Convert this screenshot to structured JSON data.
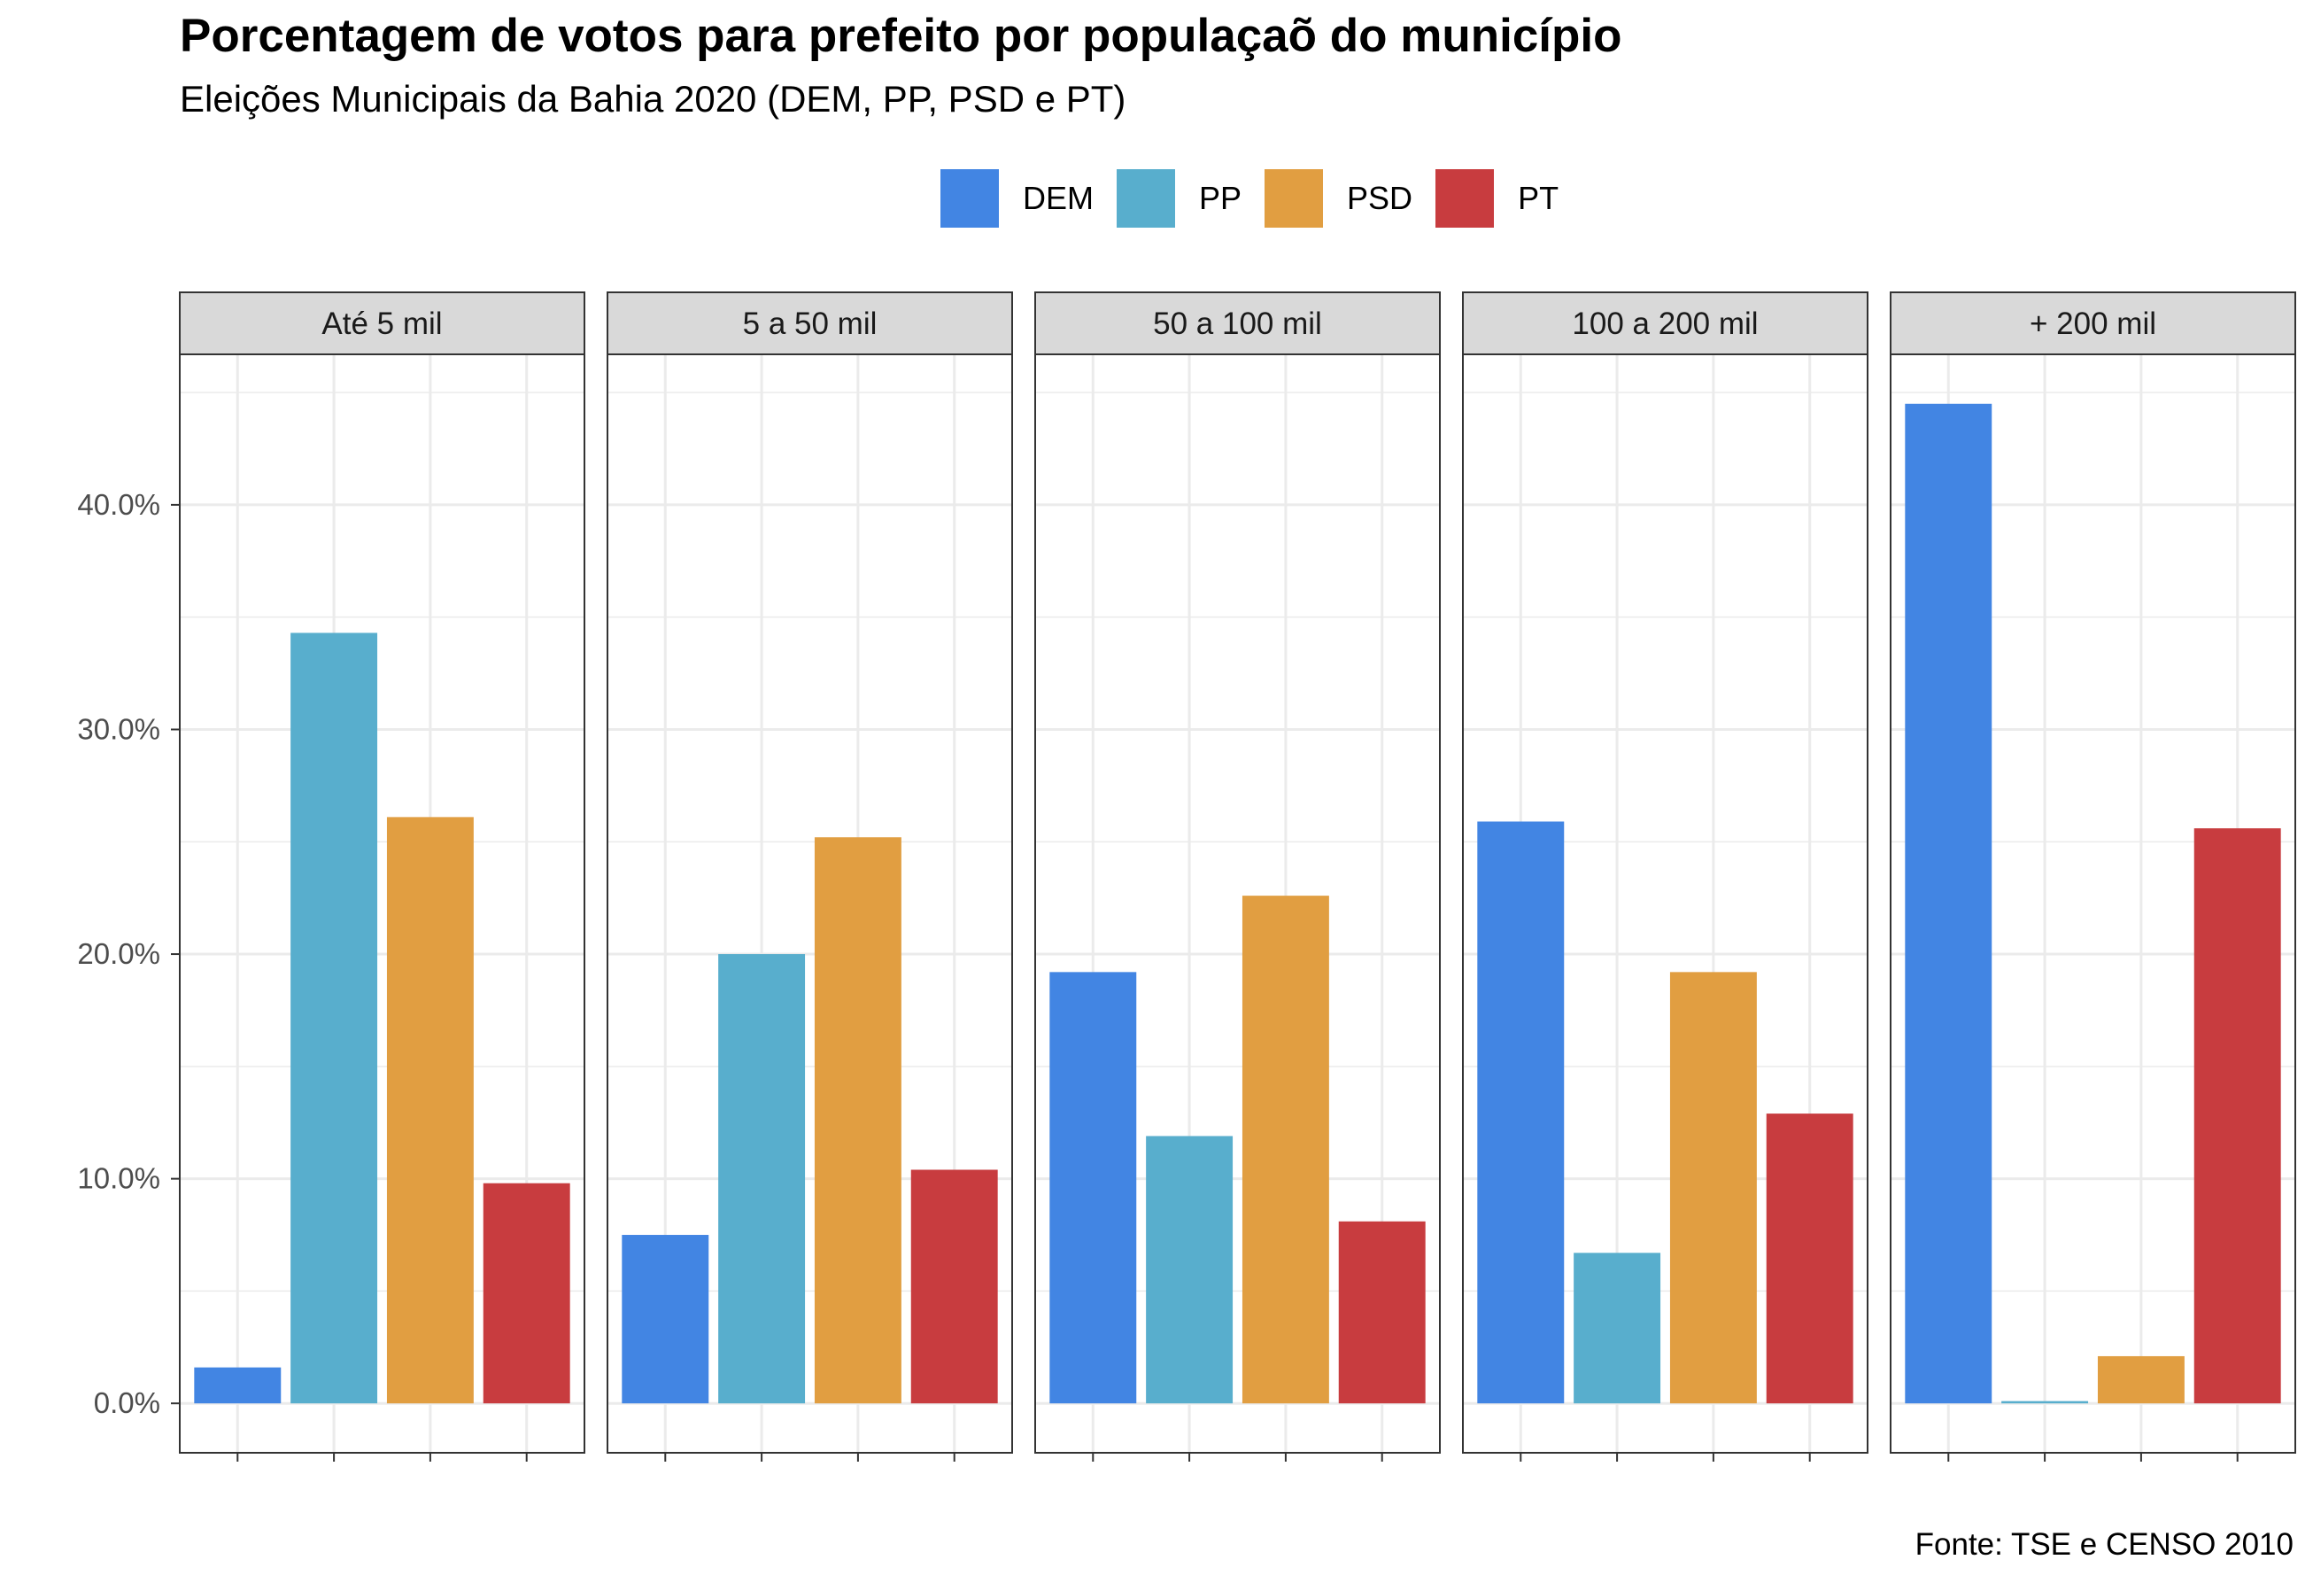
{
  "title": "Porcentagem de votos para prefeito por populaçaõ do município",
  "subtitle": "Eleições Municipais da Bahia 2020 (DEM, PP, PSD e PT)",
  "caption": "Fonte: TSE e CENSO 2010",
  "legend": [
    {
      "name": "DEM",
      "color": "#4285e3"
    },
    {
      "name": "PP",
      "color": "#58aecd"
    },
    {
      "name": "PSD",
      "color": "#e19e41"
    },
    {
      "name": "PT",
      "color": "#c83c3f"
    }
  ],
  "chart_data": {
    "type": "bar",
    "facets": [
      "Até 5 mil",
      "5 a 50 mil",
      "50 a 100 mil",
      "100 a 200 mil",
      "+ 200 mil"
    ],
    "categories": [
      "DEM",
      "PP",
      "PSD",
      "PT"
    ],
    "series": [
      {
        "facet": "Até 5 mil",
        "values": [
          1.6,
          34.3,
          26.1,
          9.8
        ]
      },
      {
        "facet": "5 a 50 mil",
        "values": [
          7.5,
          20.0,
          25.2,
          10.4
        ]
      },
      {
        "facet": "50 a 100 mil",
        "values": [
          19.2,
          11.9,
          22.6,
          8.1
        ]
      },
      {
        "facet": "100 a 200 mil",
        "values": [
          25.9,
          6.7,
          19.2,
          12.9
        ]
      },
      {
        "facet": "+ 200 mil",
        "values": [
          44.5,
          0.1,
          2.1,
          25.6
        ]
      }
    ],
    "y_ticks": [
      "0.0%",
      "10.0%",
      "20.0%",
      "30.0%",
      "40.0%"
    ],
    "y_tick_values": [
      0,
      10,
      20,
      30,
      40
    ],
    "ylim": [
      -2.2,
      46.7
    ],
    "legend_position": "top",
    "grid": true
  }
}
